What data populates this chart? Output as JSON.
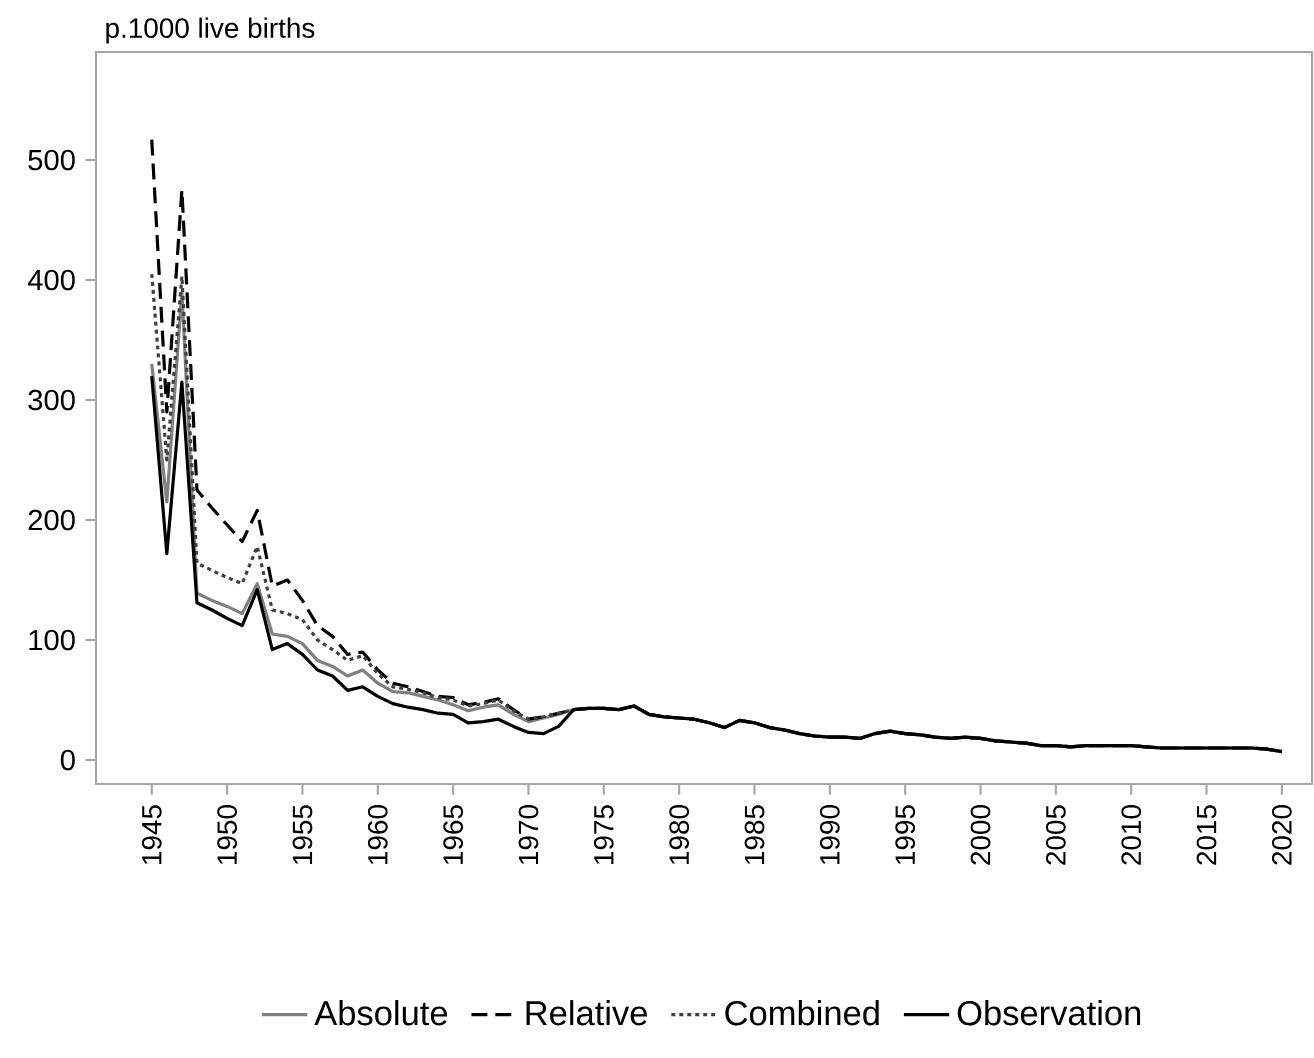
{
  "chart_data": {
    "type": "line",
    "ylabel": "p.1000 live births",
    "x": [
      1945,
      1946,
      1947,
      1948,
      1949,
      1950,
      1951,
      1952,
      1953,
      1954,
      1955,
      1956,
      1957,
      1958,
      1959,
      1960,
      1961,
      1962,
      1963,
      1964,
      1965,
      1966,
      1967,
      1968,
      1969,
      1970,
      1971,
      1972,
      1973,
      1974,
      1975,
      1976,
      1977,
      1978,
      1979,
      1980,
      1981,
      1982,
      1983,
      1984,
      1985,
      1986,
      1987,
      1988,
      1989,
      1990,
      1991,
      1992,
      1993,
      1994,
      1995,
      1996,
      1997,
      1998,
      1999,
      2000,
      2001,
      2002,
      2003,
      2004,
      2005,
      2006,
      2007,
      2008,
      2009,
      2010,
      2011,
      2012,
      2013,
      2014,
      2015,
      2016,
      2017,
      2018,
      2019,
      2020
    ],
    "series": [
      {
        "name": "Absolute",
        "color": "#808080",
        "line_style": "solid",
        "values": [
          330,
          215,
          390,
          139,
          133,
          128,
          122,
          147,
          105,
          103,
          97,
          83,
          78,
          70,
          75,
          64,
          57,
          56,
          53,
          50,
          46,
          41,
          44,
          46,
          38,
          32,
          35,
          38,
          42,
          43,
          43,
          42,
          45,
          38,
          36,
          35,
          34,
          31,
          27,
          33,
          31,
          27,
          25,
          22,
          20,
          19,
          19,
          18,
          22,
          24,
          22,
          21,
          19,
          18,
          19,
          18,
          16,
          15,
          14,
          12,
          12,
          11,
          12,
          12,
          12,
          12,
          11,
          10,
          10,
          10,
          10,
          10,
          10,
          10,
          9,
          7
        ]
      },
      {
        "name": "Relative",
        "color": "#000000",
        "line_style": "dashed",
        "values": [
          517,
          290,
          475,
          225,
          210,
          196,
          182,
          208,
          145,
          150,
          133,
          112,
          103,
          88,
          90,
          75,
          64,
          61,
          57,
          53,
          52,
          46,
          48,
          51,
          42,
          34,
          36,
          39,
          42,
          43,
          43,
          42,
          45,
          38,
          36,
          35,
          34,
          31,
          27,
          33,
          31,
          27,
          25,
          22,
          20,
          19,
          19,
          18,
          22,
          24,
          22,
          21,
          19,
          18,
          19,
          18,
          16,
          15,
          14,
          12,
          12,
          11,
          12,
          12,
          12,
          12,
          11,
          10,
          10,
          10,
          10,
          10,
          10,
          10,
          9,
          7
        ]
      },
      {
        "name": "Combined",
        "color": "#404040",
        "line_style": "dotted",
        "values": [
          405,
          250,
          403,
          164,
          158,
          152,
          147,
          178,
          125,
          122,
          117,
          100,
          92,
          83,
          87,
          72,
          61,
          59,
          56,
          52,
          50,
          45,
          47,
          50,
          41,
          34,
          36,
          39,
          42,
          43,
          43,
          42,
          45,
          38,
          36,
          35,
          34,
          31,
          27,
          33,
          31,
          27,
          25,
          22,
          20,
          19,
          19,
          18,
          22,
          24,
          22,
          21,
          19,
          18,
          19,
          18,
          16,
          15,
          14,
          12,
          12,
          11,
          12,
          12,
          12,
          12,
          11,
          10,
          10,
          10,
          10,
          10,
          10,
          10,
          9,
          7
        ]
      },
      {
        "name": "Observation",
        "color": "#000000",
        "line_style": "solid",
        "values": [
          320,
          172,
          315,
          131,
          125,
          118,
          112,
          142,
          92,
          97,
          88,
          75,
          70,
          58,
          61,
          53,
          47,
          44,
          42,
          39,
          38,
          31,
          32,
          34,
          28,
          23,
          22,
          28,
          42,
          43,
          43,
          42,
          45,
          38,
          36,
          35,
          34,
          31,
          27,
          33,
          31,
          27,
          25,
          22,
          20,
          19,
          19,
          18,
          22,
          24,
          22,
          21,
          19,
          18,
          19,
          18,
          16,
          15,
          14,
          12,
          12,
          11,
          12,
          12,
          12,
          12,
          11,
          10,
          10,
          10,
          10,
          10,
          10,
          10,
          9,
          7
        ]
      }
    ],
    "xlim": [
      1941.3,
      2022
    ],
    "ylim": [
      -20,
      590
    ],
    "xticks": [
      1945,
      1950,
      1955,
      1960,
      1965,
      1970,
      1975,
      1980,
      1985,
      1990,
      1995,
      2000,
      2005,
      2010,
      2015,
      2020
    ],
    "yticks": [
      0,
      100,
      200,
      300,
      400,
      500
    ],
    "legend": "bottom",
    "grid": false
  }
}
